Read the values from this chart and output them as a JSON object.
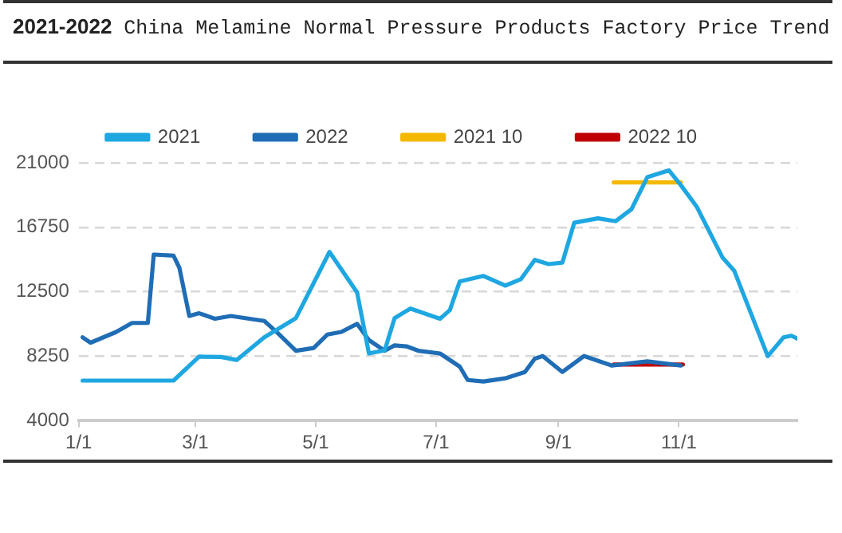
{
  "chart_data": {
    "type": "line",
    "title": "2021-2022 China Melamine Normal Pressure Products Factory Price Trend",
    "xlim": [
      "--01-01",
      "--12-31"
    ],
    "xticks": [
      {
        "value": "--01-01",
        "label": "1/1"
      },
      {
        "value": "--03-01",
        "label": "3/1"
      },
      {
        "value": "--05-01",
        "label": "5/1"
      },
      {
        "value": "--07-01",
        "label": "7/1"
      },
      {
        "value": "--09-01",
        "label": "9/1"
      },
      {
        "value": "--11-01",
        "label": "11/1"
      }
    ],
    "ylim": [
      4000,
      21000
    ],
    "yticks": [
      4000,
      8250,
      12500,
      16750,
      21000
    ],
    "grid": "y",
    "legend": "top",
    "marker": "none",
    "line_style": "solid",
    "series": [
      {
        "name": "2021",
        "color": "#1ea7e1",
        "x": [
          "--01-03",
          "--02-18",
          "--03-03",
          "--03-14",
          "--03-22",
          "--04-05",
          "--04-21",
          "--05-08",
          "--05-22",
          "--05-28",
          "--06-05",
          "--06-10",
          "--06-18",
          "--07-03",
          "--07-08",
          "--07-13",
          "--07-25",
          "--08-05",
          "--08-13",
          "--08-20",
          "--08-27",
          "--09-03",
          "--09-09",
          "--09-21",
          "--09-30",
          "--10-08",
          "--10-16",
          "--10-27",
          "--11-02",
          "--11-10",
          "--11-23",
          "--11-29",
          "--12-16",
          "--12-24",
          "--12-28",
          "--12-31"
        ],
        "values": [
          6640,
          6640,
          8220,
          8200,
          8000,
          9490,
          10760,
          15120,
          12450,
          8430,
          8640,
          10760,
          11390,
          10720,
          11290,
          13180,
          13540,
          12900,
          13330,
          14600,
          14320,
          14420,
          17050,
          17340,
          17150,
          17940,
          20050,
          20500,
          19520,
          18110,
          14770,
          13890,
          8250,
          9490,
          9600,
          9410
        ]
      },
      {
        "name": "2022",
        "color": "#1f6db5",
        "x": [
          "--01-03",
          "--01-07",
          "--01-20",
          "--01-28",
          "--02-05",
          "--02-08",
          "--02-18",
          "--02-21",
          "--02-26",
          "--03-03",
          "--03-11",
          "--03-19",
          "--04-05",
          "--04-12",
          "--04-21",
          "--04-30",
          "--05-07",
          "--05-14",
          "--05-22",
          "--05-28",
          "--06-05",
          "--06-10",
          "--06-16",
          "--06-22",
          "--07-03",
          "--07-13",
          "--07-17",
          "--07-25",
          "--08-05",
          "--08-15",
          "--08-20",
          "--08-24",
          "--09-03",
          "--09-14",
          "--09-28",
          "--10-16",
          "--11-02"
        ],
        "values": [
          9490,
          9140,
          9850,
          10440,
          10440,
          14950,
          14880,
          14070,
          10900,
          11080,
          10720,
          10900,
          10570,
          9750,
          8610,
          8790,
          9680,
          9850,
          10380,
          9310,
          8610,
          8960,
          8900,
          8610,
          8430,
          7560,
          6680,
          6580,
          6790,
          7210,
          8090,
          8260,
          7210,
          8260,
          7630,
          7910,
          7630
        ]
      },
      {
        "name": "2021 10",
        "color": "#f5b800",
        "x": [
          "--09-29",
          "--11-02"
        ],
        "values": [
          19700,
          19700
        ]
      },
      {
        "name": "2022 10",
        "color": "#c00000",
        "x": [
          "--09-29",
          "--11-03"
        ],
        "values": [
          7700,
          7700
        ]
      }
    ]
  }
}
